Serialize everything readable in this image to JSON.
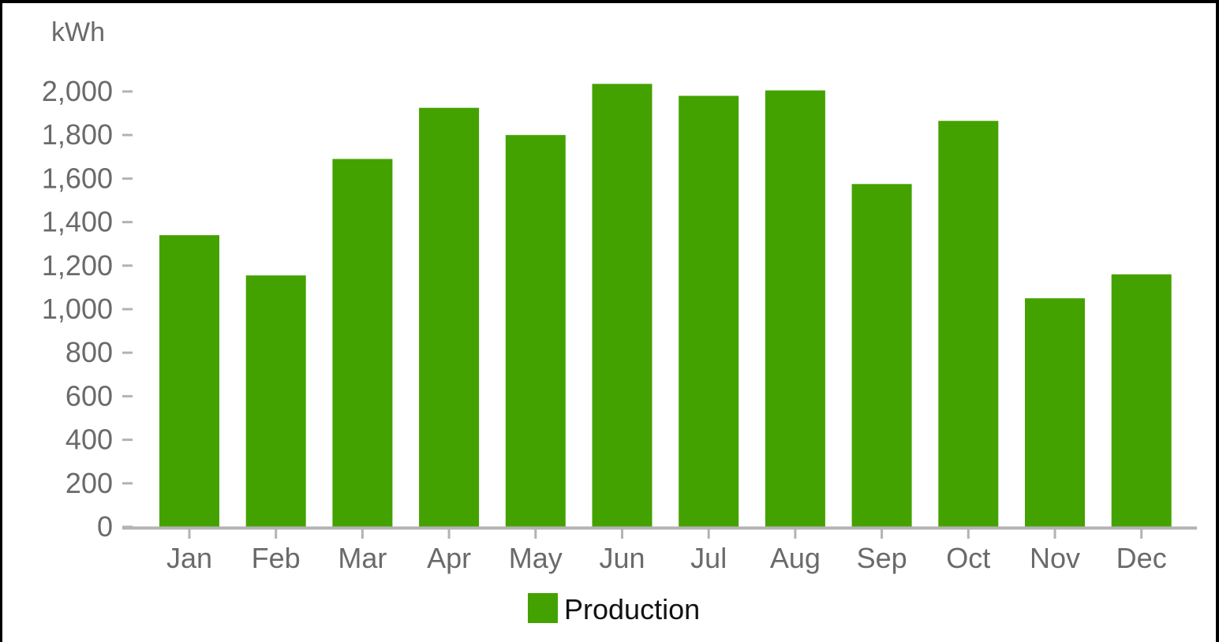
{
  "chart_data": {
    "type": "bar",
    "unit_label": "kWh",
    "categories": [
      "Jan",
      "Feb",
      "Mar",
      "Apr",
      "May",
      "Jun",
      "Jul",
      "Aug",
      "Sep",
      "Oct",
      "Nov",
      "Dec"
    ],
    "series": [
      {
        "name": "Production",
        "color": "#44a200",
        "values": [
          1340,
          1155,
          1690,
          1925,
          1800,
          2035,
          1980,
          2005,
          1575,
          1865,
          1050,
          1160
        ]
      }
    ],
    "ylim": [
      0,
      2000
    ],
    "yticks": [
      0,
      200,
      400,
      600,
      800,
      1000,
      1200,
      1400,
      1600,
      1800,
      2000
    ],
    "ytick_labels": [
      "0",
      "200",
      "400",
      "600",
      "800",
      "1,000",
      "1,200",
      "1,400",
      "1,600",
      "1,800",
      "2,000"
    ],
    "grid": false,
    "legend_position": "bottom-center",
    "axis_color": "#b3b3b3"
  }
}
